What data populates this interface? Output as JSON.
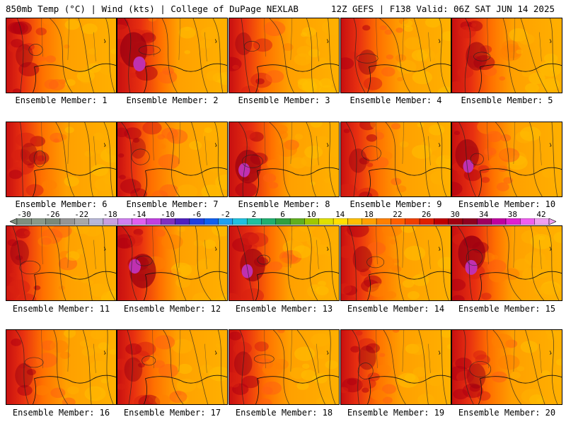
{
  "header": {
    "left": "850mb Temp (°C) | Wind (kts) | College of DuPage NEXLAB",
    "right": "12Z GEFS | F138 Valid: 06Z SAT JUN 14 2025"
  },
  "members": [
    {
      "label": "Ensemble Member: 1",
      "hot": 0.25
    },
    {
      "label": "Ensemble Member: 2",
      "hot": 0.95
    },
    {
      "label": "Ensemble Member: 3",
      "hot": 0.2
    },
    {
      "label": "Ensemble Member: 4",
      "hot": 0.35
    },
    {
      "label": "Ensemble Member: 5",
      "hot": 0.55
    },
    {
      "label": "Ensemble Member: 6",
      "hot": 0.2
    },
    {
      "label": "Ensemble Member: 7",
      "hot": 0.1
    },
    {
      "label": "Ensemble Member: 8",
      "hot": 0.85
    },
    {
      "label": "Ensemble Member: 9",
      "hot": 0.3
    },
    {
      "label": "Ensemble Member: 10",
      "hot": 0.7
    },
    {
      "label": "Ensemble Member: 11",
      "hot": 0.35
    },
    {
      "label": "Ensemble Member: 12",
      "hot": 0.9
    },
    {
      "label": "Ensemble Member: 13",
      "hot": 0.8
    },
    {
      "label": "Ensemble Member: 14",
      "hot": 0.4
    },
    {
      "label": "Ensemble Member: 15",
      "hot": 0.95
    },
    {
      "label": "Ensemble Member: 16",
      "hot": 0.3
    },
    {
      "label": "Ensemble Member: 17",
      "hot": 0.3
    },
    {
      "label": "Ensemble Member: 18",
      "hot": 0.3
    },
    {
      "label": "Ensemble Member: 19",
      "hot": 0.3
    },
    {
      "label": "Ensemble Member: 20",
      "hot": 0.35
    }
  ],
  "colorbar": {
    "ticks": [
      "-30",
      "-26",
      "-22",
      "-18",
      "-14",
      "-10",
      "-6",
      "-2",
      "2",
      "6",
      "10",
      "14",
      "18",
      "22",
      "26",
      "30",
      "34",
      "38",
      "42"
    ],
    "colors": [
      "#7f8f7f",
      "#8a9a8a",
      "#7a8a7a",
      "#969696",
      "#a8a8a8",
      "#b8b8d8",
      "#c8a0e0",
      "#d080f0",
      "#e060f0",
      "#c040e0",
      "#8030c0",
      "#5020c0",
      "#2040e0",
      "#1060f0",
      "#20a0f0",
      "#20c0e0",
      "#20c0a0",
      "#20b070",
      "#30a040",
      "#60b020",
      "#a0c800",
      "#e0e000",
      "#ffe000",
      "#ffc000",
      "#ffa000",
      "#ff8000",
      "#ff6000",
      "#f04000",
      "#e02000",
      "#c00000",
      "#a00010",
      "#900020",
      "#a00060",
      "#c000a0",
      "#e020d0",
      "#f060f0",
      "#f0a0f0"
    ]
  }
}
